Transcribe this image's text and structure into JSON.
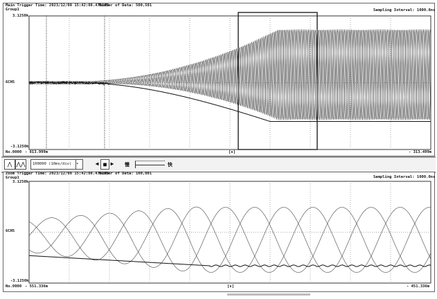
{
  "main": {
    "trigger_time": "Main Trigger Time: 2023/12/08 15:42:08.475173",
    "number_of_data": "Number of Data: 500,501",
    "group": "Group1",
    "sampling_interval": "Sampling Interval:  1000.0ns",
    "ymax": "3.1250k",
    "ymin": "-3.1250k",
    "channel": "6CH5",
    "no": "No.0000",
    "left_time": "- 813.999m",
    "unit": "[s]",
    "right_time": "- 313.499m"
  },
  "toolbar": {
    "zoom_select": "100000  (10ms/div)",
    "slow_label": "慢",
    "fast_label": "快"
  },
  "zoom": {
    "trigger_time": "Zoom Trigger Time: 2023/12/08 15:42:08.475173",
    "number_of_data": "Number of Data: 100,001",
    "group": "Group1",
    "sampling_interval": "Sampling Interval:  1000.0ns",
    "ymax": "3.1250k",
    "ymin": "-3.1250k",
    "channel": "6CH5",
    "no": "No.0000",
    "left_time": "- 551.336m",
    "unit": "[s]",
    "right_time": "- 451.336m"
  }
}
